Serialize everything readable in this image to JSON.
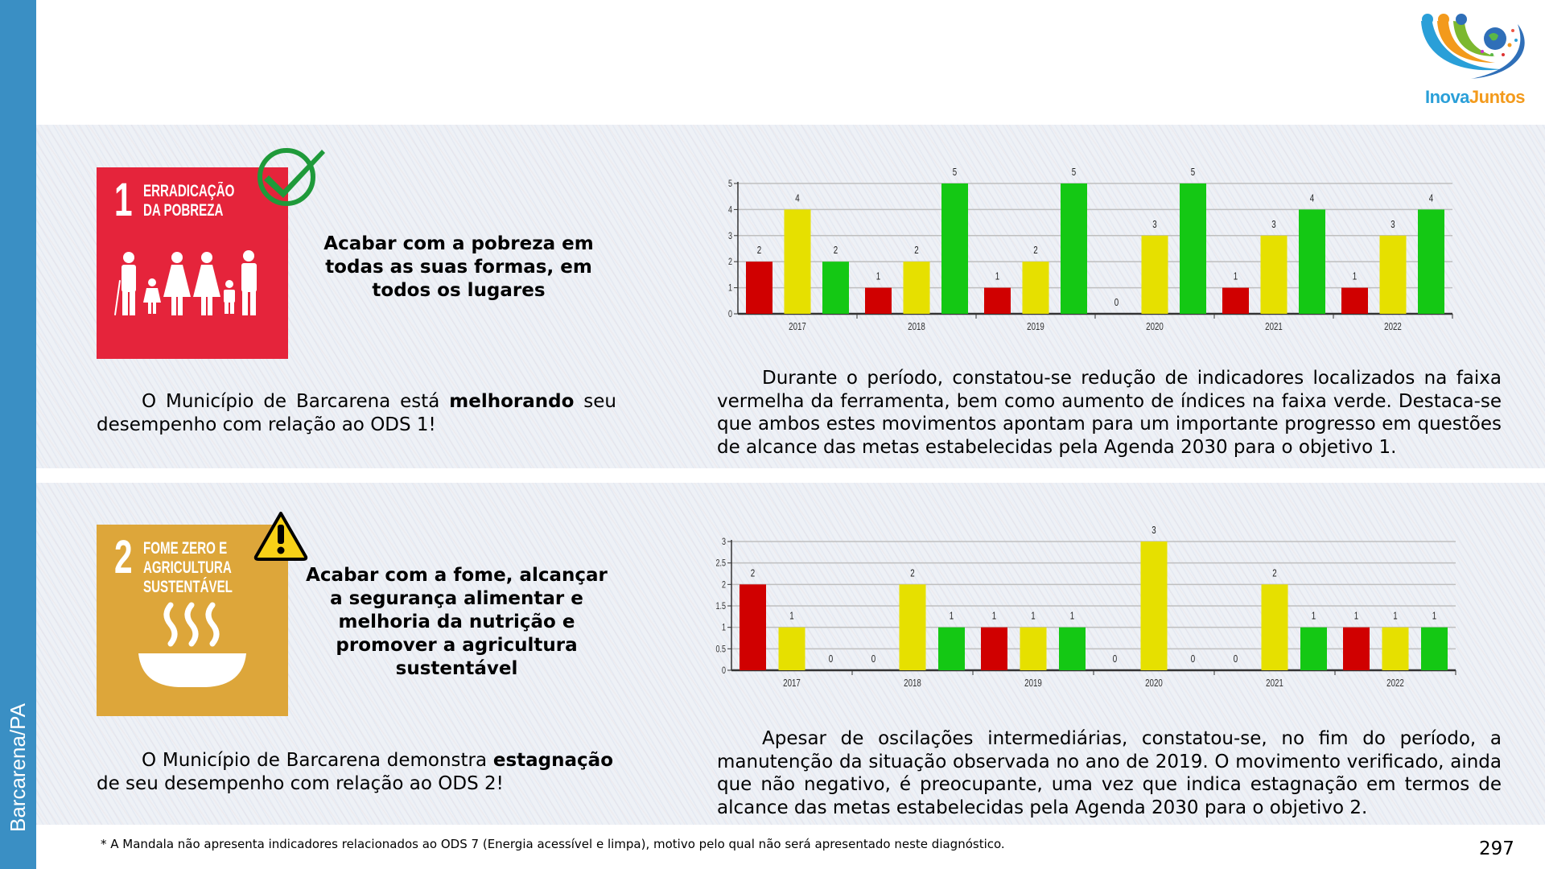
{
  "sidebar": {
    "label": "Barcarena/PA",
    "color": "#3a8fc4"
  },
  "logo": {
    "part1": "Inova",
    "part2": "Juntos"
  },
  "sections": [
    {
      "sdg_number": "1",
      "sdg_title": "ERRADICAÇÃO\nDA POBREZA",
      "sdg_color": "#e5243b",
      "status_icon": "check-circle-icon",
      "goal_title": "Acabar com a pobreza em\ntodas as suas formas, em\ntodos os lugares",
      "summary_pre": "O Município de Barcarena está ",
      "summary_bold": "melhorando",
      "summary_post": " seu desempenho com relação ao ODS 1!",
      "analysis": "Durante o período, constatou-se redução de indicadores localizados na faixa vermelha da ferramenta, bem como aumento de índices na faixa verde. Destaca-se que ambos estes movimentos apontam para um importante progresso em questões de alcance das metas estabelecidas pela Agenda 2030 para o objetivo 1."
    },
    {
      "sdg_number": "2",
      "sdg_title": "FOME ZERO E\nAGRICULTURA\nSUSTENTÁVEL",
      "sdg_color": "#dda63a",
      "status_icon": "warning-triangle-icon",
      "goal_title": "Acabar com a fome, alcançar\na segurança alimentar e\nmelhoria da nutrição e\npromover a agricultura\nsustentável",
      "summary_pre": "O Município de Barcarena demonstra ",
      "summary_bold": "estagnação",
      "summary_post": " de seu desempenho com relação ao ODS 2!",
      "analysis": "Apesar de oscilações intermediárias, constatou-se, no fim do período, a manutenção da situação observada no ano de 2019. O movimento verificado, ainda que não negativo, é preocupante, uma vez que indica estagnação em termos de alcance das metas estabelecidas pela Agenda 2030 para o objetivo 2."
    }
  ],
  "chart_data": [
    {
      "type": "bar",
      "title": "",
      "xlabel": "",
      "ylabel": "",
      "categories": [
        "2017",
        "2018",
        "2019",
        "2020",
        "2021",
        "2022"
      ],
      "series": [
        {
          "name": "Vermelho",
          "color": "#d00000",
          "values": [
            2,
            1,
            1,
            0,
            1,
            1
          ]
        },
        {
          "name": "Amarelo",
          "color": "#e6e000",
          "values": [
            4,
            2,
            2,
            3,
            3,
            3
          ]
        },
        {
          "name": "Verde",
          "color": "#14c814",
          "values": [
            2,
            5,
            5,
            5,
            4,
            4
          ]
        }
      ],
      "ylim": [
        0,
        5
      ],
      "yticks": [
        "0",
        "1",
        "2",
        "3",
        "4",
        "5"
      ],
      "grid": true,
      "legend": "none"
    },
    {
      "type": "bar",
      "title": "",
      "xlabel": "",
      "ylabel": "",
      "categories": [
        "2017",
        "2018",
        "2019",
        "2020",
        "2021",
        "2022"
      ],
      "series": [
        {
          "name": "Vermelho",
          "color": "#d00000",
          "values": [
            2,
            0,
            1,
            0,
            0,
            1
          ]
        },
        {
          "name": "Amarelo",
          "color": "#e6e000",
          "values": [
            1,
            2,
            1,
            3,
            2,
            1
          ]
        },
        {
          "name": "Verde",
          "color": "#14c814",
          "values": [
            0,
            1,
            1,
            0,
            1,
            1
          ]
        }
      ],
      "ylim": [
        0,
        3
      ],
      "yticks": [
        "0",
        "0.5",
        "1",
        "1.5",
        "2",
        "2.5",
        "3"
      ],
      "grid": true,
      "legend": "none"
    }
  ],
  "footnote": "* A Mandala não apresenta indicadores relacionados ao ODS 7 (Energia acessível e limpa), motivo pelo qual não será apresentado neste diagnóstico.",
  "page_number": "297"
}
